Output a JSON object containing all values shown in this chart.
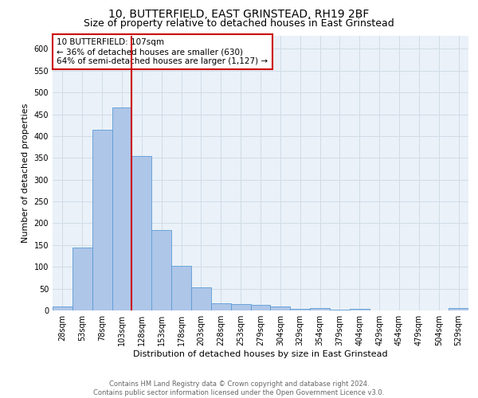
{
  "title": "10, BUTTERFIELD, EAST GRINSTEAD, RH19 2BF",
  "subtitle": "Size of property relative to detached houses in East Grinstead",
  "xlabel": "Distribution of detached houses by size in East Grinstead",
  "ylabel": "Number of detached properties",
  "footnote1": "Contains HM Land Registry data © Crown copyright and database right 2024.",
  "footnote2": "Contains public sector information licensed under the Open Government Licence v3.0.",
  "bar_labels": [
    "28sqm",
    "53sqm",
    "78sqm",
    "103sqm",
    "128sqm",
    "153sqm",
    "178sqm",
    "203sqm",
    "228sqm",
    "253sqm",
    "279sqm",
    "304sqm",
    "329sqm",
    "354sqm",
    "379sqm",
    "404sqm",
    "429sqm",
    "454sqm",
    "479sqm",
    "504sqm",
    "529sqm"
  ],
  "bar_values": [
    10,
    145,
    415,
    465,
    355,
    185,
    103,
    53,
    16,
    14,
    12,
    10,
    4,
    5,
    2,
    4,
    0,
    0,
    0,
    0,
    5
  ],
  "bar_color": "#aec6e8",
  "bar_edge_color": "#5b9bd5",
  "vline_x": 3.5,
  "vline_color": "#cc0000",
  "annotation_title": "10 BUTTERFIELD: 107sqm",
  "annotation_line1": "← 36% of detached houses are smaller (630)",
  "annotation_line2": "64% of semi-detached houses are larger (1,127) →",
  "annotation_box_color": "#cc0000",
  "ylim": [
    0,
    630
  ],
  "yticks": [
    0,
    50,
    100,
    150,
    200,
    250,
    300,
    350,
    400,
    450,
    500,
    550,
    600
  ],
  "grid_color": "#d0dce8",
  "background_color": "#eaf1f8",
  "title_fontsize": 10,
  "subtitle_fontsize": 9,
  "axis_label_fontsize": 8,
  "tick_fontsize": 7,
  "footnote_fontsize": 6,
  "annotation_fontsize": 7.5
}
